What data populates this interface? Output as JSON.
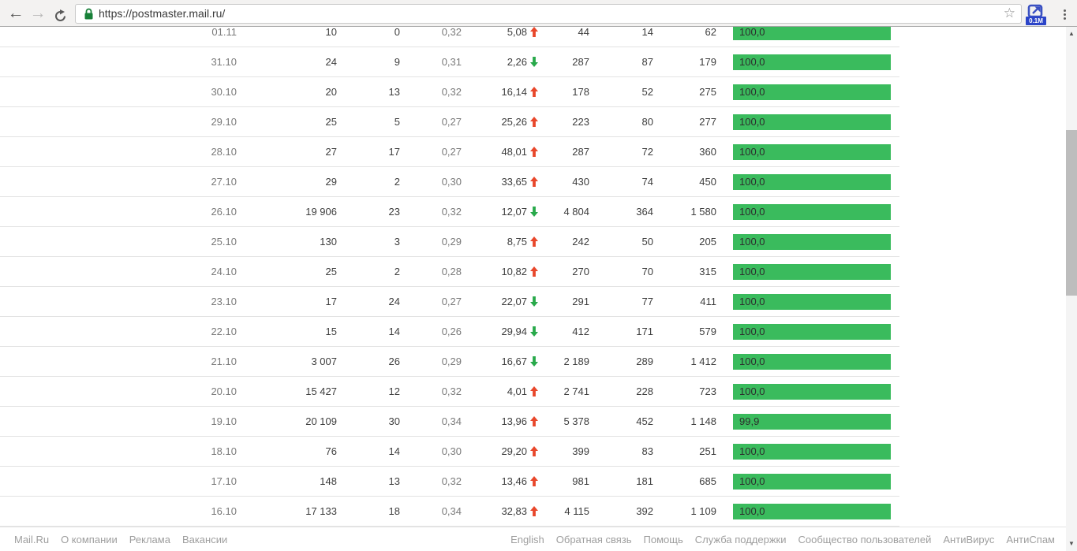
{
  "browser": {
    "url": "https://postmaster.mail.ru/",
    "extension_badge": "0.1M",
    "icons": {
      "back": "←",
      "forward": "→",
      "star": "☆",
      "scroll_up": "▲",
      "scroll_down": "▼"
    }
  },
  "colors": {
    "bar_green": "#3abb5d",
    "trend_up": "#e8472b",
    "trend_down": "#28a94a",
    "badge_blue": "#2b44c8"
  },
  "table": {
    "rows": [
      {
        "date": "01.11",
        "col2": "10",
        "col3": "0",
        "col4": "0,32",
        "trend_value": "5,08",
        "trend": "up",
        "col6": "44",
        "col7": "14",
        "col8": "62",
        "score": "100,0",
        "score_pct": 100
      },
      {
        "date": "31.10",
        "col2": "24",
        "col3": "9",
        "col4": "0,31",
        "trend_value": "2,26",
        "trend": "down",
        "col6": "287",
        "col7": "87",
        "col8": "179",
        "score": "100,0",
        "score_pct": 100
      },
      {
        "date": "30.10",
        "col2": "20",
        "col3": "13",
        "col4": "0,32",
        "trend_value": "16,14",
        "trend": "up",
        "col6": "178",
        "col7": "52",
        "col8": "275",
        "score": "100,0",
        "score_pct": 100
      },
      {
        "date": "29.10",
        "col2": "25",
        "col3": "5",
        "col4": "0,27",
        "trend_value": "25,26",
        "trend": "up",
        "col6": "223",
        "col7": "80",
        "col8": "277",
        "score": "100,0",
        "score_pct": 100
      },
      {
        "date": "28.10",
        "col2": "27",
        "col3": "17",
        "col4": "0,27",
        "trend_value": "48,01",
        "trend": "up",
        "col6": "287",
        "col7": "72",
        "col8": "360",
        "score": "100,0",
        "score_pct": 100
      },
      {
        "date": "27.10",
        "col2": "29",
        "col3": "2",
        "col4": "0,30",
        "trend_value": "33,65",
        "trend": "up",
        "col6": "430",
        "col7": "74",
        "col8": "450",
        "score": "100,0",
        "score_pct": 100
      },
      {
        "date": "26.10",
        "col2": "19 906",
        "col3": "23",
        "col4": "0,32",
        "trend_value": "12,07",
        "trend": "down",
        "col6": "4 804",
        "col7": "364",
        "col8": "1 580",
        "score": "100,0",
        "score_pct": 100
      },
      {
        "date": "25.10",
        "col2": "130",
        "col3": "3",
        "col4": "0,29",
        "trend_value": "8,75",
        "trend": "up",
        "col6": "242",
        "col7": "50",
        "col8": "205",
        "score": "100,0",
        "score_pct": 100
      },
      {
        "date": "24.10",
        "col2": "25",
        "col3": "2",
        "col4": "0,28",
        "trend_value": "10,82",
        "trend": "up",
        "col6": "270",
        "col7": "70",
        "col8": "315",
        "score": "100,0",
        "score_pct": 100
      },
      {
        "date": "23.10",
        "col2": "17",
        "col3": "24",
        "col4": "0,27",
        "trend_value": "22,07",
        "trend": "down",
        "col6": "291",
        "col7": "77",
        "col8": "411",
        "score": "100,0",
        "score_pct": 100
      },
      {
        "date": "22.10",
        "col2": "15",
        "col3": "14",
        "col4": "0,26",
        "trend_value": "29,94",
        "trend": "down",
        "col6": "412",
        "col7": "171",
        "col8": "579",
        "score": "100,0",
        "score_pct": 100
      },
      {
        "date": "21.10",
        "col2": "3 007",
        "col3": "26",
        "col4": "0,29",
        "trend_value": "16,67",
        "trend": "down",
        "col6": "2 189",
        "col7": "289",
        "col8": "1 412",
        "score": "100,0",
        "score_pct": 100
      },
      {
        "date": "20.10",
        "col2": "15 427",
        "col3": "12",
        "col4": "0,32",
        "trend_value": "4,01",
        "trend": "up",
        "col6": "2 741",
        "col7": "228",
        "col8": "723",
        "score": "100,0",
        "score_pct": 100
      },
      {
        "date": "19.10",
        "col2": "20 109",
        "col3": "30",
        "col4": "0,34",
        "trend_value": "13,96",
        "trend": "up",
        "col6": "5 378",
        "col7": "452",
        "col8": "1 148",
        "score": "99,9",
        "score_pct": 99.9
      },
      {
        "date": "18.10",
        "col2": "76",
        "col3": "14",
        "col4": "0,30",
        "trend_value": "29,20",
        "trend": "up",
        "col6": "399",
        "col7": "83",
        "col8": "251",
        "score": "100,0",
        "score_pct": 100
      },
      {
        "date": "17.10",
        "col2": "148",
        "col3": "13",
        "col4": "0,32",
        "trend_value": "13,46",
        "trend": "up",
        "col6": "981",
        "col7": "181",
        "col8": "685",
        "score": "100,0",
        "score_pct": 100
      },
      {
        "date": "16.10",
        "col2": "17 133",
        "col3": "18",
        "col4": "0,34",
        "trend_value": "32,83",
        "trend": "up",
        "col6": "4 115",
        "col7": "392",
        "col8": "1 109",
        "score": "100,0",
        "score_pct": 100
      }
    ]
  },
  "footer": {
    "left_links": [
      "Mail.Ru",
      "О компании",
      "Реклама",
      "Вакансии"
    ],
    "right_links": [
      "English",
      "Обратная связь",
      "Помощь",
      "Служба поддержки",
      "Сообщество пользователей",
      "АнтиВирус",
      "АнтиСпам"
    ]
  }
}
